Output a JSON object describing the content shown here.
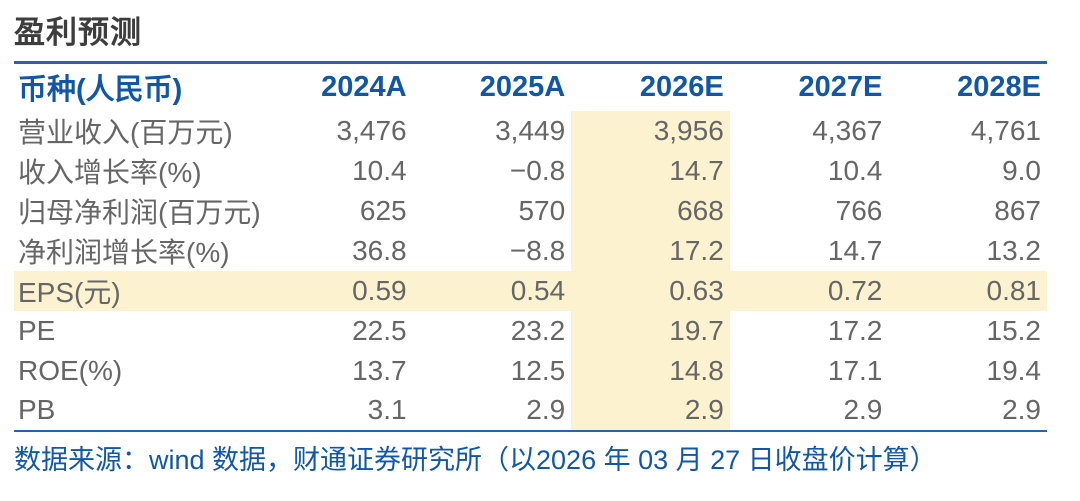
{
  "title": "盈利预测",
  "colors": {
    "header_footer_blue": "#1257a5",
    "rule_line_blue": "#2166ae",
    "body_text_gray": "#666666",
    "title_gray": "#3d3d3d",
    "highlight_yellow": "#fcf2d0"
  },
  "table": {
    "header": [
      "币种(人民币)",
      "2024A",
      "2025A",
      "2026E",
      "2027E",
      "2028E"
    ],
    "highlight_col_value_index": 2,
    "rows": [
      {
        "label": "营业收入(百万元)",
        "values": [
          "3,476",
          "3,449",
          "3,956",
          "4,367",
          "4,761"
        ],
        "highlight": false
      },
      {
        "label": "收入增长率(%)",
        "values": [
          "10.4",
          "−0.8",
          "14.7",
          "10.4",
          "9.0"
        ],
        "highlight": false
      },
      {
        "label": "归母净利润(百万元)",
        "values": [
          "625",
          "570",
          "668",
          "766",
          "867"
        ],
        "highlight": false
      },
      {
        "label": "净利润增长率(%)",
        "values": [
          "36.8",
          "−8.8",
          "17.2",
          "14.7",
          "13.2"
        ],
        "highlight": false
      },
      {
        "label": "EPS(元)",
        "values": [
          "0.59",
          "0.54",
          "0.63",
          "0.72",
          "0.81"
        ],
        "highlight": true
      },
      {
        "label": "PE",
        "values": [
          "22.5",
          "23.2",
          "19.7",
          "17.2",
          "15.2"
        ],
        "highlight": false
      },
      {
        "label": "ROE(%)",
        "values": [
          "13.7",
          "12.5",
          "14.8",
          "17.1",
          "19.4"
        ],
        "highlight": false
      },
      {
        "label": "PB",
        "values": [
          "3.1",
          "2.9",
          "2.9",
          "2.9",
          "2.9"
        ],
        "highlight": false
      }
    ]
  },
  "footer": {
    "source_text": "数据来源：wind 数据，财通证券研究所（以2026 年 03 月 27 日收盘价计算）"
  }
}
